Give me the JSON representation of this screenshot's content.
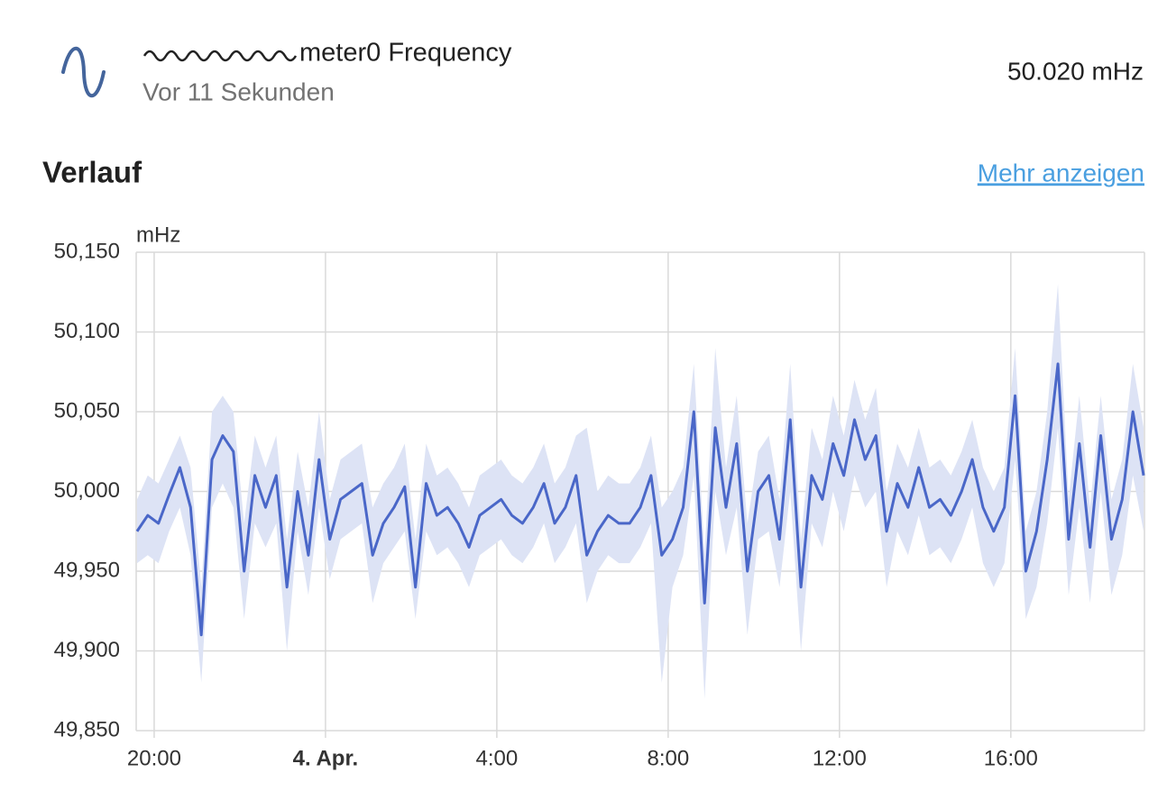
{
  "header": {
    "title": "meter0 Frequency",
    "subtitle": "Vor 11 Sekunden",
    "state": "50.020 mHz"
  },
  "history": {
    "title": "Verlauf",
    "link": "Mehr anzeigen"
  },
  "chart_data": {
    "type": "line",
    "y_label": "mHz",
    "x": [
      19.6,
      19.85,
      20.1,
      20.35,
      20.6,
      20.85,
      21.1,
      21.35,
      21.6,
      21.85,
      22.1,
      22.35,
      22.6,
      22.85,
      23.1,
      23.35,
      23.6,
      23.85,
      24.1,
      24.35,
      24.6,
      24.85,
      25.1,
      25.35,
      25.6,
      25.85,
      26.1,
      26.35,
      26.6,
      26.85,
      27.1,
      27.35,
      27.6,
      27.85,
      28.1,
      28.35,
      28.6,
      28.85,
      29.1,
      29.35,
      29.6,
      29.85,
      30.1,
      30.35,
      30.6,
      30.85,
      31.1,
      31.35,
      31.6,
      31.85,
      32.1,
      32.35,
      32.6,
      32.85,
      33.1,
      33.35,
      33.6,
      33.85,
      34.1,
      34.35,
      34.6,
      34.85,
      35.1,
      35.35,
      35.6,
      35.85,
      36.1,
      36.35,
      36.6,
      36.85,
      37.1,
      37.35,
      37.6,
      37.85,
      38.1,
      38.35,
      38.6,
      38.85,
      39.1,
      39.35,
      39.6,
      39.85,
      40.1,
      40.35,
      40.6,
      40.85,
      41.1,
      41.35,
      41.6,
      41.85,
      42.1,
      42.35,
      42.6,
      42.85,
      43.1
    ],
    "series": [
      {
        "color": "#4a67c8",
        "values": [
          49.975,
          49.985,
          49.98,
          49.998,
          50.015,
          49.99,
          49.91,
          50.02,
          50.035,
          50.025,
          49.95,
          50.01,
          49.99,
          50.01,
          49.94,
          50.0,
          49.96,
          50.02,
          49.97,
          49.995,
          50.0,
          50.005,
          49.96,
          49.98,
          49.99,
          50.003,
          49.94,
          50.005,
          49.985,
          49.99,
          49.98,
          49.965,
          49.985,
          49.99,
          49.995,
          49.985,
          49.98,
          49.99,
          50.005,
          49.98,
          49.99,
          50.01,
          49.96,
          49.975,
          49.985,
          49.98,
          49.98,
          49.99,
          50.01,
          49.96,
          49.97,
          49.99,
          50.05,
          49.93,
          50.04,
          49.99,
          50.03,
          49.95,
          50.0,
          50.01,
          49.97,
          50.045,
          49.94,
          50.01,
          49.995,
          50.03,
          50.01,
          50.045,
          50.02,
          50.035,
          49.975,
          50.005,
          49.99,
          50.015,
          49.99,
          49.995,
          49.985,
          50.0,
          50.02,
          49.99,
          49.975,
          49.99,
          50.06,
          49.95,
          49.975,
          50.02,
          50.08,
          49.97,
          50.03,
          49.965,
          50.035,
          49.97,
          49.995,
          50.05,
          50.01
        ]
      }
    ],
    "band_color": "#dde3f5",
    "low": [
      49.955,
      49.96,
      49.955,
      49.975,
      49.99,
      49.96,
      49.88,
      49.99,
      50.005,
      49.99,
      49.92,
      49.98,
      49.965,
      49.98,
      49.9,
      49.975,
      49.935,
      49.99,
      49.945,
      49.97,
      49.975,
      49.98,
      49.93,
      49.955,
      49.965,
      49.975,
      49.92,
      49.975,
      49.96,
      49.965,
      49.955,
      49.94,
      49.96,
      49.965,
      49.97,
      49.96,
      49.955,
      49.965,
      49.98,
      49.955,
      49.965,
      49.98,
      49.93,
      49.95,
      49.96,
      49.955,
      49.955,
      49.965,
      49.98,
      49.88,
      49.94,
      49.96,
      50.01,
      49.87,
      50.0,
      49.96,
      49.99,
      49.91,
      49.97,
      49.975,
      49.94,
      50.0,
      49.9,
      49.98,
      49.965,
      50.0,
      49.975,
      50.01,
      49.99,
      50.0,
      49.94,
      49.975,
      49.96,
      49.985,
      49.96,
      49.965,
      49.955,
      49.97,
      49.99,
      49.955,
      49.94,
      49.955,
      50.02,
      49.92,
      49.94,
      49.98,
      50.04,
      49.935,
      49.99,
      49.93,
      50.0,
      49.935,
      49.96,
      50.01,
      49.975
    ],
    "high": [
      49.995,
      50.01,
      50.005,
      50.02,
      50.035,
      50.015,
      49.94,
      50.05,
      50.06,
      50.05,
      49.98,
      50.035,
      50.015,
      50.035,
      49.97,
      50.025,
      49.99,
      50.05,
      49.995,
      50.02,
      50.025,
      50.03,
      49.99,
      50.005,
      50.015,
      50.03,
      49.97,
      50.03,
      50.01,
      50.015,
      50.005,
      49.99,
      50.01,
      50.015,
      50.02,
      50.01,
      50.005,
      50.015,
      50.03,
      50.005,
      50.015,
      50.035,
      50.04,
      50.0,
      50.01,
      50.005,
      50.005,
      50.015,
      50.035,
      49.99,
      50.0,
      50.015,
      50.08,
      49.96,
      50.09,
      50.015,
      50.06,
      49.98,
      50.025,
      50.035,
      49.995,
      50.08,
      49.97,
      50.04,
      50.02,
      50.06,
      50.035,
      50.07,
      50.045,
      50.065,
      50.0,
      50.03,
      50.015,
      50.04,
      50.015,
      50.02,
      50.01,
      50.025,
      50.045,
      50.015,
      50.0,
      50.015,
      50.09,
      49.975,
      50.0,
      50.05,
      50.13,
      49.995,
      50.06,
      49.99,
      50.06,
      49.995,
      50.02,
      50.08,
      50.04
    ],
    "xlim": [
      19.58,
      43.12
    ],
    "xticks": [
      {
        "value": 20,
        "label": "20:00"
      },
      {
        "value": 24,
        "label": "4. Apr."
      },
      {
        "value": 28,
        "label": "4:00"
      },
      {
        "value": 32,
        "label": "8:00"
      },
      {
        "value": 36,
        "label": "12:00"
      },
      {
        "value": 40,
        "label": "16:00"
      }
    ],
    "ylim": [
      49.85,
      50.15
    ],
    "yticks": [
      {
        "value": 49.85,
        "label": "49,850"
      },
      {
        "value": 49.9,
        "label": "49,900"
      },
      {
        "value": 49.95,
        "label": "49,950"
      },
      {
        "value": 50.0,
        "label": "50,000"
      },
      {
        "value": 50.05,
        "label": "50,050"
      },
      {
        "value": 50.1,
        "label": "50,100"
      },
      {
        "value": 50.15,
        "label": "50,150"
      }
    ],
    "grid": true
  }
}
